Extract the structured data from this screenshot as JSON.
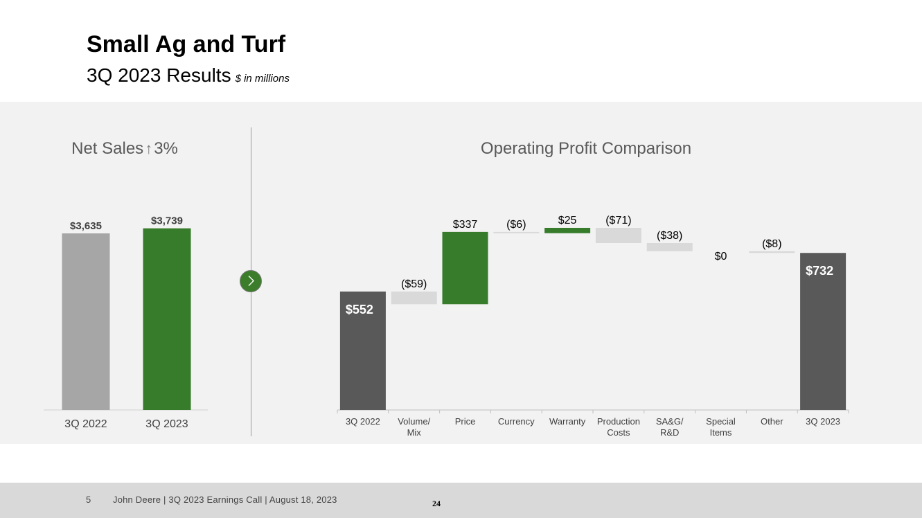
{
  "header": {
    "title": "Small Ag and Turf",
    "subtitle": "3Q 2023 Results",
    "unit_note": "$ in millions"
  },
  "icons": {
    "navigation": "chevron-right-icon"
  },
  "colors": {
    "green": "#367c2b",
    "light_gray": "#a6a6a6",
    "dark_gray": "#595959",
    "neg_gray": "#d9d9d9"
  },
  "chart_data": [
    {
      "type": "bar",
      "title": "Net Sales",
      "title_suffix": "3%",
      "title_arrow": "↑",
      "categories": [
        "3Q 2022",
        "3Q 2023"
      ],
      "values": [
        3635,
        3739
      ],
      "labels": [
        "$3,635",
        "$3,739"
      ],
      "colors": [
        "#a6a6a6",
        "#367c2b"
      ],
      "ylim": [
        0,
        4000
      ]
    },
    {
      "type": "waterfall",
      "title": "Operating Profit Comparison",
      "categories": [
        "3Q 2022",
        "Volume/\nMix",
        "Price",
        "Currency",
        "Warranty",
        "Production\nCosts",
        "SA&G/\nR&D",
        "Special\nItems",
        "Other",
        "3Q 2023"
      ],
      "values": [
        552,
        -59,
        337,
        -6,
        25,
        -71,
        -38,
        0,
        -8,
        732
      ],
      "kinds": [
        "total",
        "delta",
        "delta",
        "delta",
        "delta",
        "delta",
        "delta",
        "delta",
        "delta",
        "total"
      ],
      "labels": [
        "$552",
        "($59)",
        "$337",
        "($6)",
        "$25",
        "($71)",
        "($38)",
        "$0",
        "($8)",
        "$732"
      ],
      "ylim": [
        0,
        900
      ]
    }
  ],
  "footer": {
    "page_number": "5",
    "text": "John Deere | 3Q 2023 Earnings Call | August 18, 2023",
    "slide_number": "24"
  }
}
